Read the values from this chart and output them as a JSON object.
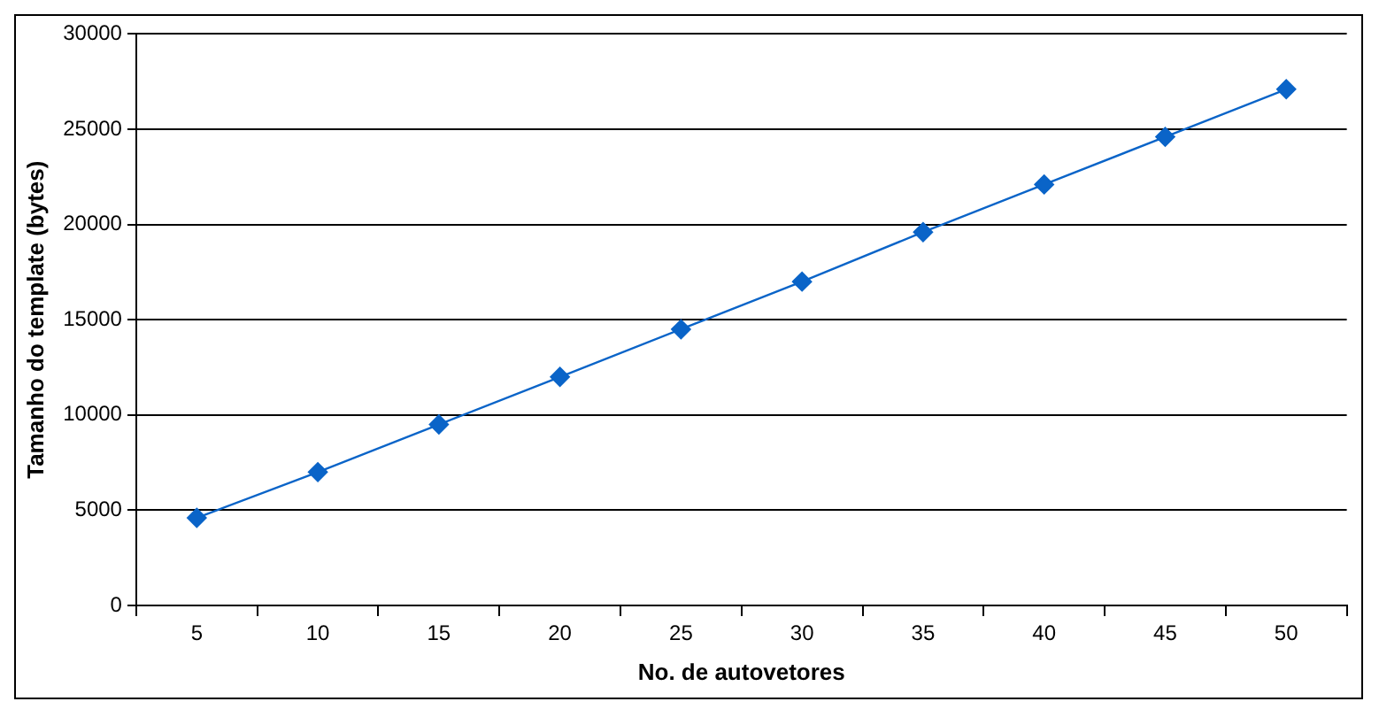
{
  "chart_data": {
    "type": "line",
    "xlabel": "No. de autovetores",
    "ylabel": "Tamanho do template (bytes)",
    "categories": [
      "5",
      "10",
      "15",
      "20",
      "25",
      "30",
      "35",
      "40",
      "45",
      "50"
    ],
    "series": [
      {
        "color": "#0a64c8",
        "values": [
          4600,
          7000,
          9500,
          12000,
          14500,
          17000,
          19600,
          22100,
          24600,
          27100
        ]
      }
    ],
    "ylim": [
      0,
      30000
    ],
    "yticks": [
      0,
      5000,
      10000,
      15000,
      20000,
      25000,
      30000
    ],
    "grid": "y",
    "legend": false,
    "marker": "diamond",
    "line_style": "solid"
  }
}
